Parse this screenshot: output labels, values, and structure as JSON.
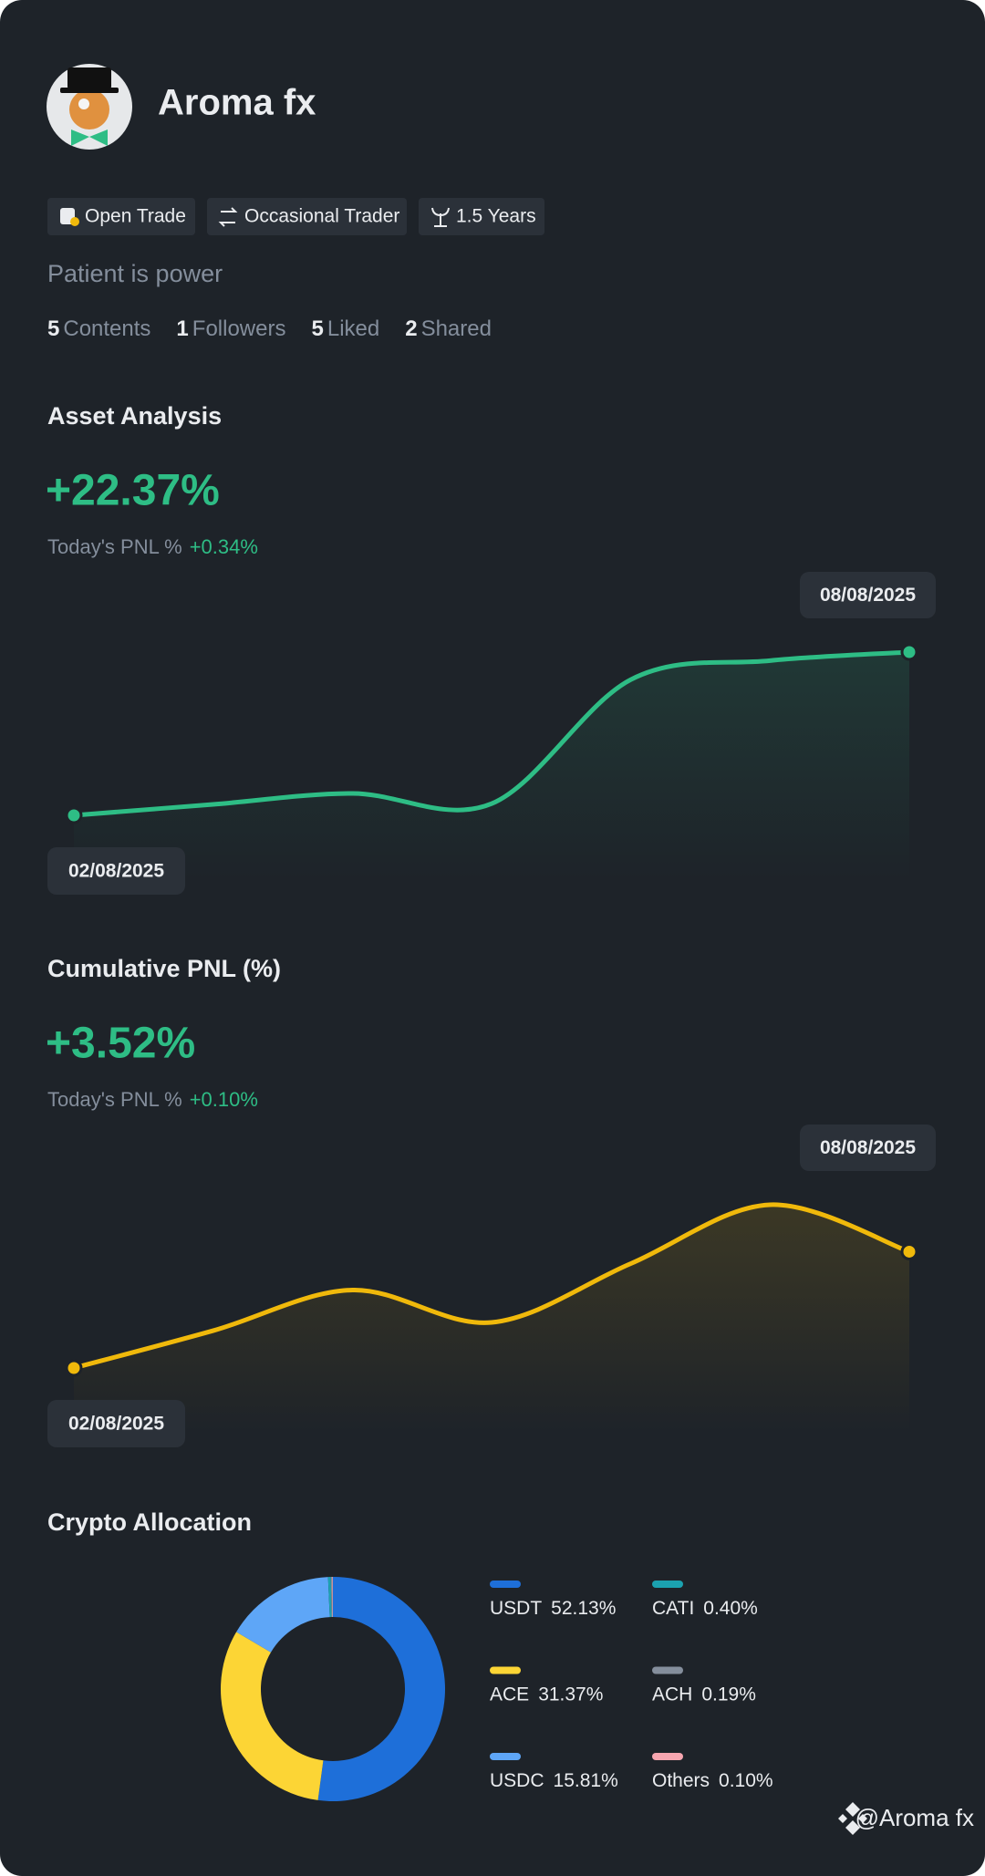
{
  "profile": {
    "name": "Aroma fx",
    "tags": [
      "Open Trade",
      "Occasional Trader",
      "1.5 Years"
    ],
    "bio": "Patient is power",
    "stats": [
      {
        "count": 5,
        "label": "Contents"
      },
      {
        "count": 1,
        "label": "Followers"
      },
      {
        "count": 5,
        "label": "Liked"
      },
      {
        "count": 2,
        "label": "Shared"
      }
    ]
  },
  "chart_data": [
    {
      "type": "line",
      "title": "Asset Analysis",
      "headline": "+22.37%",
      "pnl_label": "Today's PNL %",
      "pnl_value": "+0.34%",
      "categories": [
        "02/08/2025",
        null,
        null,
        null,
        null,
        null,
        "08/08/2025"
      ],
      "values": [
        0,
        1.5,
        3.0,
        1.6,
        18.6,
        21.2,
        22.37
      ],
      "color": "#2ebd85"
    },
    {
      "type": "line",
      "title": "Cumulative PNL (%)",
      "headline": "+3.52%",
      "pnl_label": "Today's PNL %",
      "pnl_value": "+0.10%",
      "categories": [
        "02/08/2025",
        null,
        null,
        null,
        null,
        null,
        "08/08/2025"
      ],
      "values": [
        0,
        1.13,
        2.36,
        1.38,
        3.16,
        4.94,
        3.52
      ],
      "color": "#f0b90b"
    },
    {
      "type": "pie",
      "title": "Crypto Allocation",
      "categories": [
        "USDT",
        "ACE",
        "USDC",
        "CATI",
        "ACH",
        "Others"
      ],
      "values": [
        52.13,
        31.37,
        15.81,
        0.4,
        0.19,
        0.1
      ],
      "value_labels": [
        "52.13%",
        "31.37%",
        "15.81%",
        "0.40%",
        "0.19%",
        "0.10%"
      ],
      "colors": [
        "#1e6fd9",
        "#fcd535",
        "#5ea6f7",
        "#1ba2b0",
        "#848e9c",
        "#f7a6b0"
      ]
    }
  ],
  "watermark": "@Aroma fx"
}
